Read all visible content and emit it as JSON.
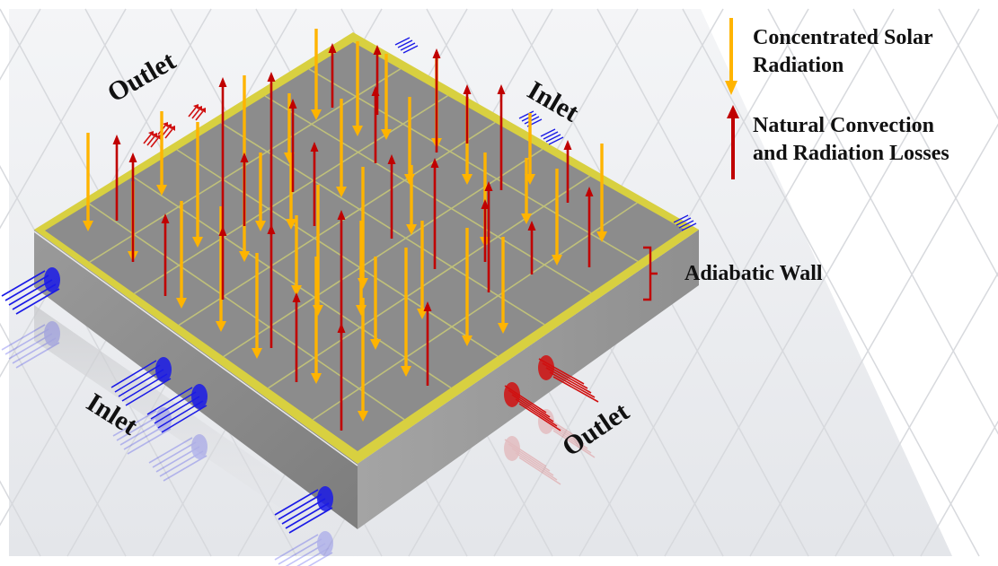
{
  "legend": {
    "solar": {
      "line1": "Concentrated Solar",
      "line2": "Radiation",
      "color": "#FFB400"
    },
    "losses": {
      "line1": "Natural Convection",
      "line2": "and Radiation Losses",
      "color": "#C00000"
    }
  },
  "labels": {
    "outlet_top_left": "Outlet",
    "inlet_top_right": "Inlet",
    "inlet_bottom_left": "Inlet",
    "outlet_bottom_right": "Outlet",
    "adiabatic_wall": "Adiabatic Wall"
  },
  "colors": {
    "plate_top": "#8C8C8C",
    "plate_side_left": "#8A8A8A",
    "plate_side_right": "#9C9C9C",
    "rim": "#D8D040",
    "cell_line": "#BFC07A",
    "inlet_flow": "#1A1AE6",
    "outlet_flow": "#D01010",
    "bracket": "#C00000"
  }
}
